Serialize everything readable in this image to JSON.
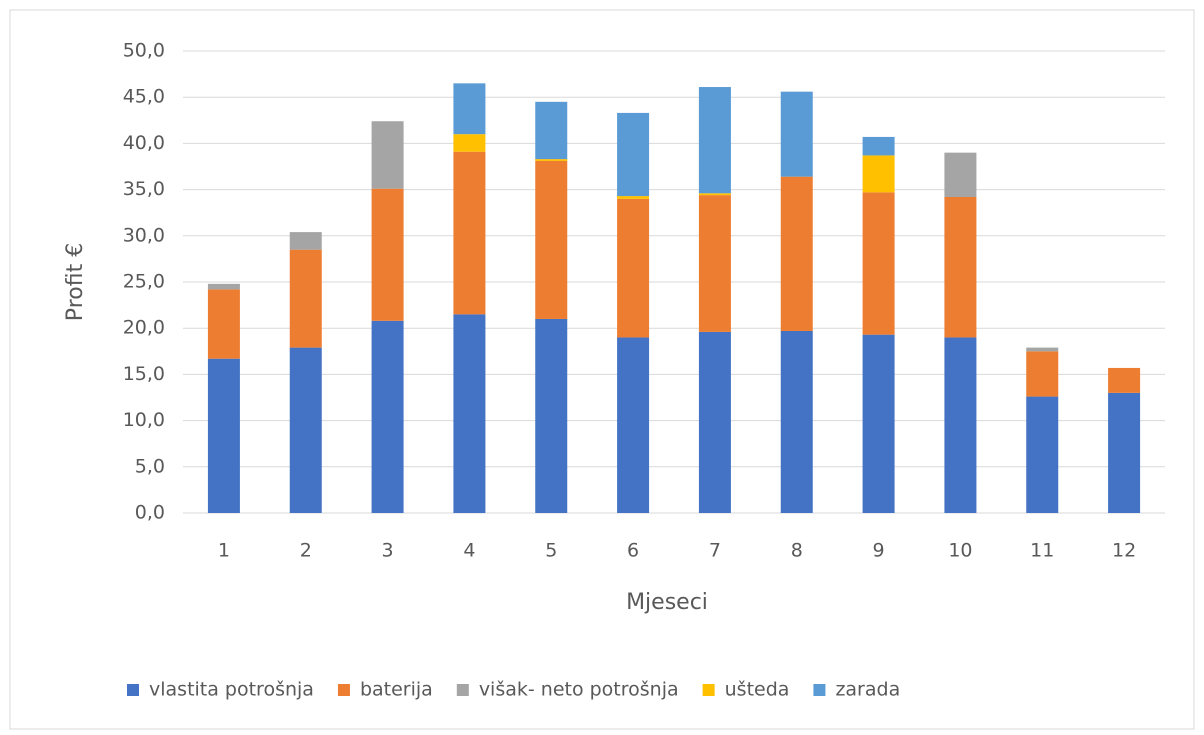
{
  "chart_data": {
    "type": "stacked_bar",
    "x_label": "Mjeseci",
    "y_label": "Profit €",
    "categories": [
      "1",
      "2",
      "3",
      "4",
      "5",
      "6",
      "7",
      "8",
      "9",
      "10",
      "11",
      "12"
    ],
    "series": [
      {
        "name": "vlastita potrošnja",
        "color": "#4472c4",
        "values": [
          16.7,
          17.9,
          20.8,
          21.5,
          21.0,
          19.0,
          19.6,
          19.7,
          19.3,
          19.0,
          12.6,
          13.0
        ]
      },
      {
        "name": "baterija",
        "color": "#ed7d31",
        "values": [
          7.5,
          10.6,
          14.3,
          17.6,
          17.1,
          15.0,
          14.8,
          16.7,
          15.4,
          15.2,
          4.9,
          2.7
        ]
      },
      {
        "name": "višak- neto potrošnja",
        "color": "#a5a5a5",
        "values": [
          0.6,
          1.9,
          7.3,
          0,
          0,
          0,
          0,
          0,
          0,
          4.8,
          0.4,
          0
        ]
      },
      {
        "name": "ušteda",
        "color": "#ffc000",
        "values": [
          0,
          0,
          0,
          1.9,
          0.2,
          0.3,
          0.2,
          0,
          4.0,
          0,
          0,
          0
        ]
      },
      {
        "name": "zarada",
        "color": "#5b9bd5",
        "values": [
          0,
          0,
          0,
          5.5,
          6.2,
          9.0,
          11.5,
          9.2,
          2.0,
          0,
          0,
          0
        ]
      }
    ],
    "ylim": [
      0,
      50
    ],
    "yticks": [
      {
        "value": 0,
        "label": "0,0"
      },
      {
        "value": 5,
        "label": "5,0"
      },
      {
        "value": 10,
        "label": "10,0"
      },
      {
        "value": 15,
        "label": "15,0"
      },
      {
        "value": 20,
        "label": "20,0"
      },
      {
        "value": 25,
        "label": "25,0"
      },
      {
        "value": 30,
        "label": "30,0"
      },
      {
        "value": 35,
        "label": "35,0"
      },
      {
        "value": 40,
        "label": "40,0"
      },
      {
        "value": 45,
        "label": "45,0"
      },
      {
        "value": 50,
        "label": "50,0"
      }
    ],
    "grid": true,
    "legend": "bottom"
  }
}
